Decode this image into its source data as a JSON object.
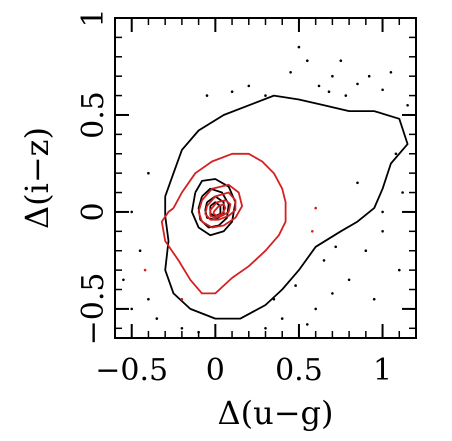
{
  "chart_data": {
    "type": "scatter",
    "title": "",
    "xlabel": "Δ(u−g)",
    "ylabel": "Δ(i−z)",
    "xlim": [
      -0.6,
      1.2
    ],
    "ylim": [
      -0.65,
      1.0
    ],
    "x_ticks": [
      {
        "value": -0.5,
        "label": "−0.5"
      },
      {
        "value": 0,
        "label": "0"
      },
      {
        "value": 0.5,
        "label": "0.5"
      },
      {
        "value": 1,
        "label": "1"
      }
    ],
    "y_ticks": [
      {
        "value": -0.5,
        "label": "−0.5"
      },
      {
        "value": 0,
        "label": "0"
      },
      {
        "value": 0.5,
        "label": "0.5"
      },
      {
        "value": 1,
        "label": "1"
      }
    ],
    "grid": false,
    "colors": {
      "series_a": "#000000",
      "series_b": "#d42020"
    },
    "series": [
      {
        "contours": [
          [
            [
              -0.3,
              0.08
            ],
            [
              -0.25,
              0.2
            ],
            [
              -0.2,
              0.32
            ],
            [
              -0.1,
              0.42
            ],
            [
              0.05,
              0.5
            ],
            [
              0.2,
              0.55
            ],
            [
              0.35,
              0.6
            ],
            [
              0.5,
              0.58
            ],
            [
              0.65,
              0.55
            ],
            [
              0.8,
              0.52
            ],
            [
              0.95,
              0.52
            ],
            [
              1.1,
              0.48
            ],
            [
              1.15,
              0.35
            ],
            [
              1.05,
              0.25
            ],
            [
              1.0,
              0.12
            ],
            [
              0.95,
              0.02
            ],
            [
              0.85,
              -0.05
            ],
            [
              0.75,
              -0.1
            ],
            [
              0.6,
              -0.18
            ],
            [
              0.5,
              -0.3
            ],
            [
              0.4,
              -0.4
            ],
            [
              0.3,
              -0.48
            ],
            [
              0.15,
              -0.55
            ],
            [
              0.0,
              -0.55
            ],
            [
              -0.15,
              -0.5
            ],
            [
              -0.25,
              -0.42
            ],
            [
              -0.3,
              -0.3
            ],
            [
              -0.28,
              -0.15
            ],
            [
              -0.3,
              -0.02
            ],
            [
              -0.3,
              0.08
            ]
          ],
          [
            [
              -0.12,
              0.1
            ],
            [
              -0.08,
              0.16
            ],
            [
              0.0,
              0.17
            ],
            [
              0.08,
              0.13
            ],
            [
              0.12,
              0.05
            ],
            [
              0.1,
              -0.05
            ],
            [
              0.05,
              -0.1
            ],
            [
              -0.03,
              -0.12
            ],
            [
              -0.1,
              -0.08
            ],
            [
              -0.14,
              0.0
            ],
            [
              -0.12,
              0.1
            ]
          ],
          [
            [
              -0.08,
              0.08
            ],
            [
              -0.03,
              0.12
            ],
            [
              0.04,
              0.1
            ],
            [
              0.08,
              0.04
            ],
            [
              0.07,
              -0.03
            ],
            [
              0.02,
              -0.07
            ],
            [
              -0.04,
              -0.08
            ],
            [
              -0.09,
              -0.04
            ],
            [
              -0.1,
              0.02
            ],
            [
              -0.08,
              0.08
            ]
          ],
          [
            [
              -0.05,
              0.05
            ],
            [
              0.0,
              0.08
            ],
            [
              0.05,
              0.05
            ],
            [
              0.05,
              -0.01
            ],
            [
              0.0,
              -0.04
            ],
            [
              -0.05,
              -0.03
            ],
            [
              -0.06,
              0.01
            ],
            [
              -0.05,
              0.05
            ]
          ],
          [
            [
              -0.03,
              0.03
            ],
            [
              0.0,
              0.05
            ],
            [
              0.03,
              0.03
            ],
            [
              0.03,
              -0.01
            ],
            [
              0.0,
              -0.02
            ],
            [
              -0.03,
              -0.01
            ],
            [
              -0.03,
              0.03
            ]
          ]
        ],
        "points": [
          [
            0.45,
            0.72
          ],
          [
            0.55,
            0.78
          ],
          [
            0.62,
            0.65
          ],
          [
            0.7,
            0.7
          ],
          [
            0.85,
            0.66
          ],
          [
            0.92,
            0.7
          ],
          [
            1.0,
            0.63
          ],
          [
            1.05,
            0.72
          ],
          [
            0.78,
            0.6
          ],
          [
            0.68,
            0.62
          ],
          [
            1.12,
            0.1
          ],
          [
            1.08,
            0.3
          ],
          [
            1.0,
            -0.1
          ],
          [
            0.9,
            -0.2
          ],
          [
            0.8,
            -0.35
          ],
          [
            0.7,
            -0.42
          ],
          [
            0.6,
            -0.5
          ],
          [
            0.55,
            -0.58
          ],
          [
            0.35,
            -0.45
          ],
          [
            0.4,
            -0.55
          ],
          [
            0.3,
            -0.6
          ],
          [
            -0.4,
            -0.45
          ],
          [
            -0.35,
            -0.55
          ],
          [
            -0.5,
            -0.5
          ],
          [
            -0.55,
            -0.35
          ],
          [
            -0.45,
            -0.2
          ],
          [
            -0.5,
            0.0
          ],
          [
            -0.4,
            0.2
          ],
          [
            1.0,
            0.0
          ],
          [
            1.1,
            -0.3
          ],
          [
            0.95,
            -0.45
          ],
          [
            0.85,
            0.15
          ],
          [
            0.3,
            0.6
          ],
          [
            0.2,
            0.65
          ],
          [
            0.1,
            0.62
          ],
          [
            -0.05,
            0.6
          ],
          [
            1.15,
            0.55
          ],
          [
            0.75,
            0.78
          ],
          [
            0.5,
            0.85
          ],
          [
            0.65,
            -0.25
          ],
          [
            0.72,
            -0.18
          ],
          [
            0.48,
            -0.38
          ],
          [
            -0.2,
            -0.6
          ],
          [
            -0.1,
            -0.62
          ]
        ]
      },
      {
        "contours": [
          [
            [
              -0.25,
              0.02
            ],
            [
              -0.2,
              0.1
            ],
            [
              -0.12,
              0.2
            ],
            [
              -0.02,
              0.26
            ],
            [
              0.1,
              0.3
            ],
            [
              0.2,
              0.3
            ],
            [
              0.28,
              0.26
            ],
            [
              0.35,
              0.2
            ],
            [
              0.4,
              0.12
            ],
            [
              0.42,
              0.05
            ],
            [
              0.42,
              -0.05
            ],
            [
              0.38,
              -0.12
            ],
            [
              0.3,
              -0.2
            ],
            [
              0.2,
              -0.28
            ],
            [
              0.1,
              -0.34
            ],
            [
              0.0,
              -0.42
            ],
            [
              -0.08,
              -0.42
            ],
            [
              -0.15,
              -0.35
            ],
            [
              -0.22,
              -0.25
            ],
            [
              -0.3,
              -0.15
            ],
            [
              -0.32,
              -0.05
            ],
            [
              -0.28,
              0.0
            ],
            [
              -0.25,
              0.02
            ]
          ],
          [
            [
              -0.08,
              0.06
            ],
            [
              -0.02,
              0.12
            ],
            [
              0.08,
              0.14
            ],
            [
              0.14,
              0.1
            ],
            [
              0.16,
              0.03
            ],
            [
              0.12,
              -0.03
            ],
            [
              0.05,
              -0.07
            ],
            [
              -0.02,
              -0.08
            ],
            [
              -0.08,
              -0.05
            ],
            [
              -0.1,
              0.0
            ],
            [
              -0.08,
              0.06
            ]
          ],
          [
            [
              -0.05,
              0.03
            ],
            [
              0.0,
              0.08
            ],
            [
              0.08,
              0.1
            ],
            [
              0.12,
              0.06
            ],
            [
              0.12,
              0.01
            ],
            [
              0.08,
              -0.02
            ],
            [
              0.02,
              -0.04
            ],
            [
              -0.03,
              -0.04
            ],
            [
              -0.06,
              -0.01
            ],
            [
              -0.05,
              0.03
            ]
          ],
          [
            [
              -0.03,
              0.01
            ],
            [
              0.01,
              0.05
            ],
            [
              0.06,
              0.06
            ],
            [
              0.09,
              0.04
            ],
            [
              0.08,
              0.0
            ],
            [
              0.04,
              -0.02
            ],
            [
              0.0,
              -0.03
            ],
            [
              -0.03,
              -0.02
            ],
            [
              -0.03,
              0.01
            ]
          ],
          [
            [
              -0.01,
              0.0
            ],
            [
              0.02,
              0.03
            ],
            [
              0.05,
              0.04
            ],
            [
              0.06,
              0.02
            ],
            [
              0.04,
              -0.01
            ],
            [
              0.01,
              -0.02
            ],
            [
              -0.01,
              -0.01
            ],
            [
              -0.01,
              0.0
            ]
          ]
        ],
        "points": [
          [
            -0.42,
            -0.3
          ],
          [
            -0.2,
            -0.45
          ],
          [
            0.58,
            -0.1
          ],
          [
            0.6,
            0.02
          ]
        ]
      }
    ]
  }
}
